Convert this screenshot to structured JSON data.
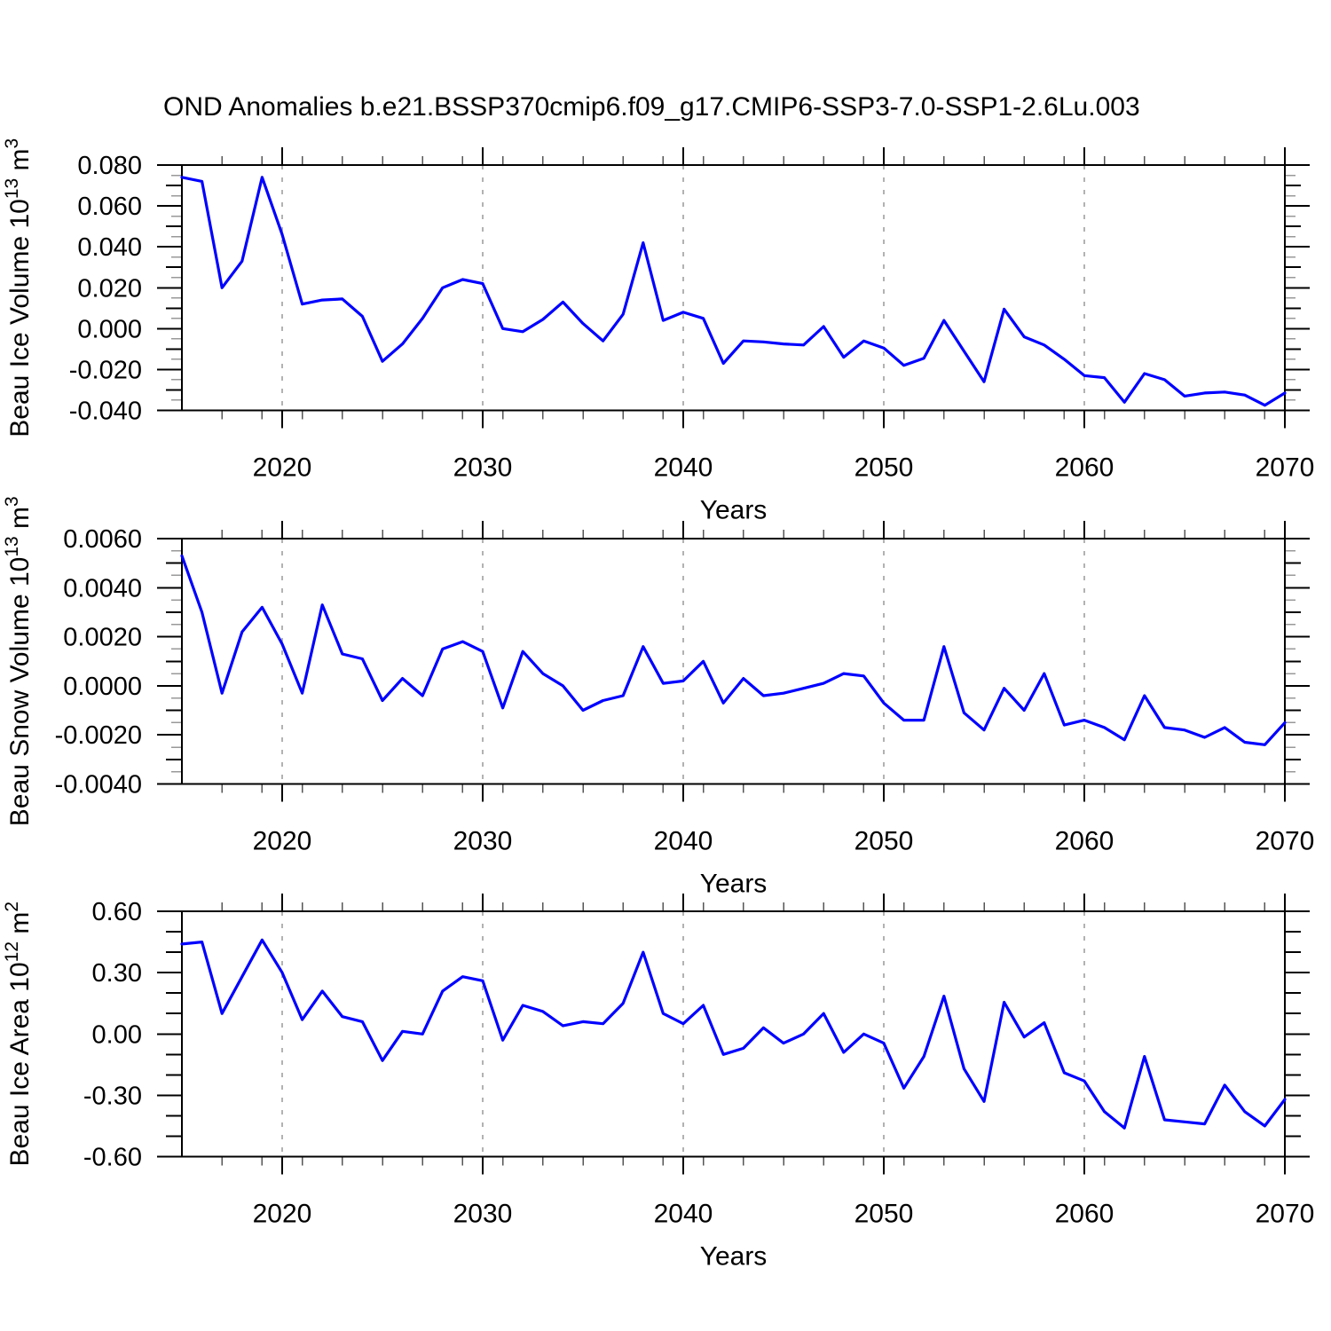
{
  "title": "OND Anomalies b.e21.BSSP370cmip6.f09_g17.CMIP6-SSP3-7.0-SSP1-2.6Lu.003",
  "line_color": "#0000ff",
  "grid_color": "#999999",
  "chart_data": [
    {
      "type": "line",
      "id": "beau-ice-volume",
      "ylabel": "Beau Ice Volume 10^13 m^3",
      "ylabel_segments": [
        {
          "t": "Beau Ice Volume 10"
        },
        {
          "t": "13",
          "sup": true
        },
        {
          "t": " m"
        },
        {
          "t": "3",
          "sup": true
        }
      ],
      "xlabel": "Years",
      "ylim": [
        -0.04,
        0.08
      ],
      "ytick_major_step": 0.02,
      "ytick_minor_step": 0.005,
      "yticks_per_major": 4,
      "yticks_per_medium": 2,
      "ylabel_decimals": 3,
      "x": [
        2015,
        2016,
        2017,
        2018,
        2019,
        2020,
        2021,
        2022,
        2023,
        2024,
        2025,
        2026,
        2027,
        2028,
        2029,
        2030,
        2031,
        2032,
        2033,
        2034,
        2035,
        2036,
        2037,
        2038,
        2039,
        2040,
        2041,
        2042,
        2043,
        2044,
        2045,
        2046,
        2047,
        2048,
        2049,
        2050,
        2051,
        2052,
        2053,
        2054,
        2055,
        2056,
        2057,
        2058,
        2059,
        2060,
        2061,
        2062,
        2063,
        2064,
        2065,
        2066,
        2067,
        2068,
        2069,
        2070
      ],
      "values": [
        0.074,
        0.072,
        0.02,
        0.033,
        0.074,
        0.046,
        0.012,
        0.014,
        0.0145,
        0.006,
        -0.016,
        -0.0075,
        0.005,
        0.02,
        0.024,
        0.022,
        0.0,
        -0.0015,
        0.0045,
        0.013,
        0.0025,
        -0.006,
        0.007,
        0.042,
        0.004,
        0.008,
        0.005,
        -0.017,
        -0.006,
        -0.0065,
        -0.0075,
        -0.008,
        0.001,
        -0.014,
        -0.006,
        -0.0095,
        -0.018,
        -0.0145,
        0.004,
        -0.011,
        -0.026,
        0.0095,
        -0.004,
        -0.008,
        -0.015,
        -0.023,
        -0.024,
        -0.036,
        -0.022,
        -0.025,
        -0.033,
        -0.0315,
        -0.031,
        -0.0325,
        -0.0375,
        -0.0315
      ]
    },
    {
      "type": "line",
      "id": "beau-snow-volume",
      "ylabel": "Beau Snow Volume 10^13 m^3",
      "ylabel_segments": [
        {
          "t": "Beau Snow Volume 10"
        },
        {
          "t": "13",
          "sup": true
        },
        {
          "t": " m"
        },
        {
          "t": "3",
          "sup": true
        }
      ],
      "xlabel": "Years",
      "ylim": [
        -0.004,
        0.006
      ],
      "ytick_major_step": 0.002,
      "ytick_minor_step": 0.0005,
      "yticks_per_major": 4,
      "yticks_per_medium": 2,
      "ylabel_decimals": 4,
      "x": [
        2015,
        2016,
        2017,
        2018,
        2019,
        2020,
        2021,
        2022,
        2023,
        2024,
        2025,
        2026,
        2027,
        2028,
        2029,
        2030,
        2031,
        2032,
        2033,
        2034,
        2035,
        2036,
        2037,
        2038,
        2039,
        2040,
        2041,
        2042,
        2043,
        2044,
        2045,
        2046,
        2047,
        2048,
        2049,
        2050,
        2051,
        2052,
        2053,
        2054,
        2055,
        2056,
        2057,
        2058,
        2059,
        2060,
        2061,
        2062,
        2063,
        2064,
        2065,
        2066,
        2067,
        2068,
        2069,
        2070
      ],
      "values": [
        0.0053,
        0.003,
        -0.0003,
        0.0022,
        0.0032,
        0.0017,
        -0.0003,
        0.0033,
        0.0013,
        0.0011,
        -0.0006,
        0.0003,
        -0.0004,
        0.0015,
        0.0018,
        0.0014,
        -0.0009,
        0.0014,
        0.0005,
        0.0,
        -0.001,
        -0.0006,
        -0.0004,
        0.0016,
        0.0001,
        0.0002,
        0.001,
        -0.0007,
        0.0003,
        -0.0004,
        -0.0003,
        -0.0001,
        0.0001,
        0.0005,
        0.0004,
        -0.0007,
        -0.0014,
        -0.0014,
        0.0016,
        -0.0011,
        -0.0018,
        -0.0001,
        -0.001,
        0.0005,
        -0.0016,
        -0.0014,
        -0.0017,
        -0.0022,
        -0.0004,
        -0.0017,
        -0.0018,
        -0.0021,
        -0.0017,
        -0.0023,
        -0.0024,
        -0.0015
      ]
    },
    {
      "type": "line",
      "id": "beau-ice-area",
      "ylabel": "Beau Ice Area 10^12 m^2",
      "ylabel_segments": [
        {
          "t": "Beau Ice Area 10"
        },
        {
          "t": "12",
          "sup": true
        },
        {
          "t": " m"
        },
        {
          "t": "2",
          "sup": true
        }
      ],
      "xlabel": "Years",
      "ylim": [
        -0.6,
        0.6
      ],
      "ytick_major_step": 0.3,
      "ytick_minor_step": 0.1,
      "yticks_per_major": 3,
      "yticks_per_medium": 1,
      "ylabel_decimals": 2,
      "x": [
        2015,
        2016,
        2017,
        2018,
        2019,
        2020,
        2021,
        2022,
        2023,
        2024,
        2025,
        2026,
        2027,
        2028,
        2029,
        2030,
        2031,
        2032,
        2033,
        2034,
        2035,
        2036,
        2037,
        2038,
        2039,
        2040,
        2041,
        2042,
        2043,
        2044,
        2045,
        2046,
        2047,
        2048,
        2049,
        2050,
        2051,
        2052,
        2053,
        2054,
        2055,
        2056,
        2057,
        2058,
        2059,
        2060,
        2061,
        2062,
        2063,
        2064,
        2065,
        2066,
        2067,
        2068,
        2069,
        2070
      ],
      "values": [
        0.44,
        0.45,
        0.1,
        0.28,
        0.46,
        0.3,
        0.07,
        0.21,
        0.085,
        0.06,
        -0.13,
        0.013,
        0.0,
        0.21,
        0.28,
        0.26,
        -0.03,
        0.14,
        0.11,
        0.04,
        0.06,
        0.05,
        0.15,
        0.4,
        0.1,
        0.05,
        0.14,
        -0.1,
        -0.07,
        0.03,
        -0.045,
        0.0,
        0.1,
        -0.09,
        0.0,
        -0.045,
        -0.265,
        -0.11,
        0.185,
        -0.17,
        -0.33,
        0.155,
        -0.015,
        0.055,
        -0.19,
        -0.23,
        -0.38,
        -0.46,
        -0.11,
        -0.42,
        -0.43,
        -0.44,
        -0.25,
        -0.38,
        -0.45,
        -0.32
      ]
    }
  ],
  "x_axis": {
    "major_tick_years": [
      2020,
      2030,
      2040,
      2050,
      2060,
      2070
    ],
    "minor_tick_step_years": 2,
    "grid_years": [
      2020,
      2030,
      2040,
      2050,
      2060
    ],
    "range": [
      2015,
      2070
    ]
  }
}
